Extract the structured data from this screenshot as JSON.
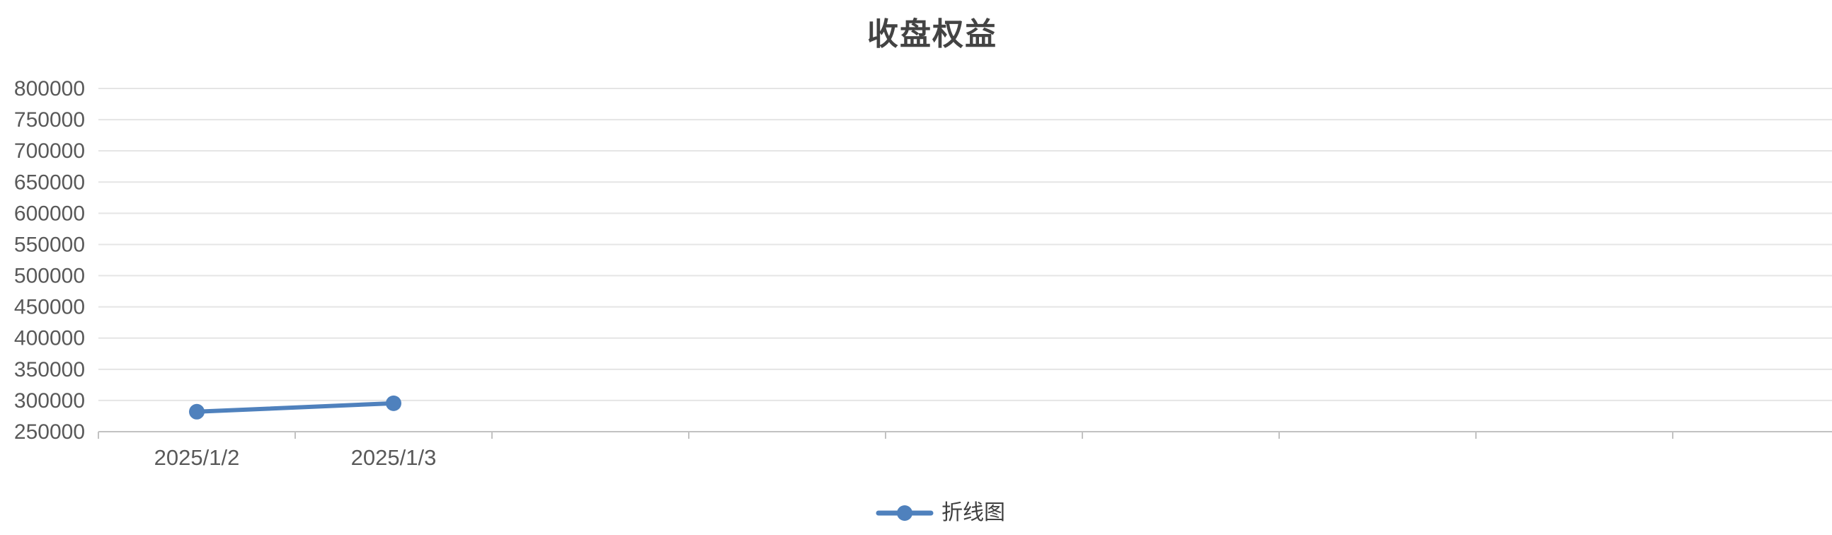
{
  "chart": {
    "title": "收盘权益",
    "legend_label": "折线图",
    "colors": {
      "series_blue": "#4F81BD",
      "title_text": "#434343",
      "axis_text": "#595959",
      "gridline": "#E5E5E5",
      "axis_line": "#C2C2C2",
      "background": "#FFFFFF"
    }
  },
  "chart_data": {
    "type": "line",
    "title": "收盘权益",
    "categories": [
      "2025/1/2",
      "2025/1/3"
    ],
    "series": [
      {
        "name": "折线图",
        "values": [
          282000,
          295500
        ]
      }
    ],
    "xlabel": "",
    "ylabel": "",
    "ylim": [
      250000,
      800000
    ],
    "ytick_step": 50000,
    "ytick_labels": [
      "250000",
      "300000",
      "350000",
      "400000",
      "450000",
      "500000",
      "550000",
      "600000",
      "650000",
      "700000",
      "750000",
      "800000"
    ],
    "grid": true,
    "legend_position": "bottom",
    "marker": "circle"
  }
}
